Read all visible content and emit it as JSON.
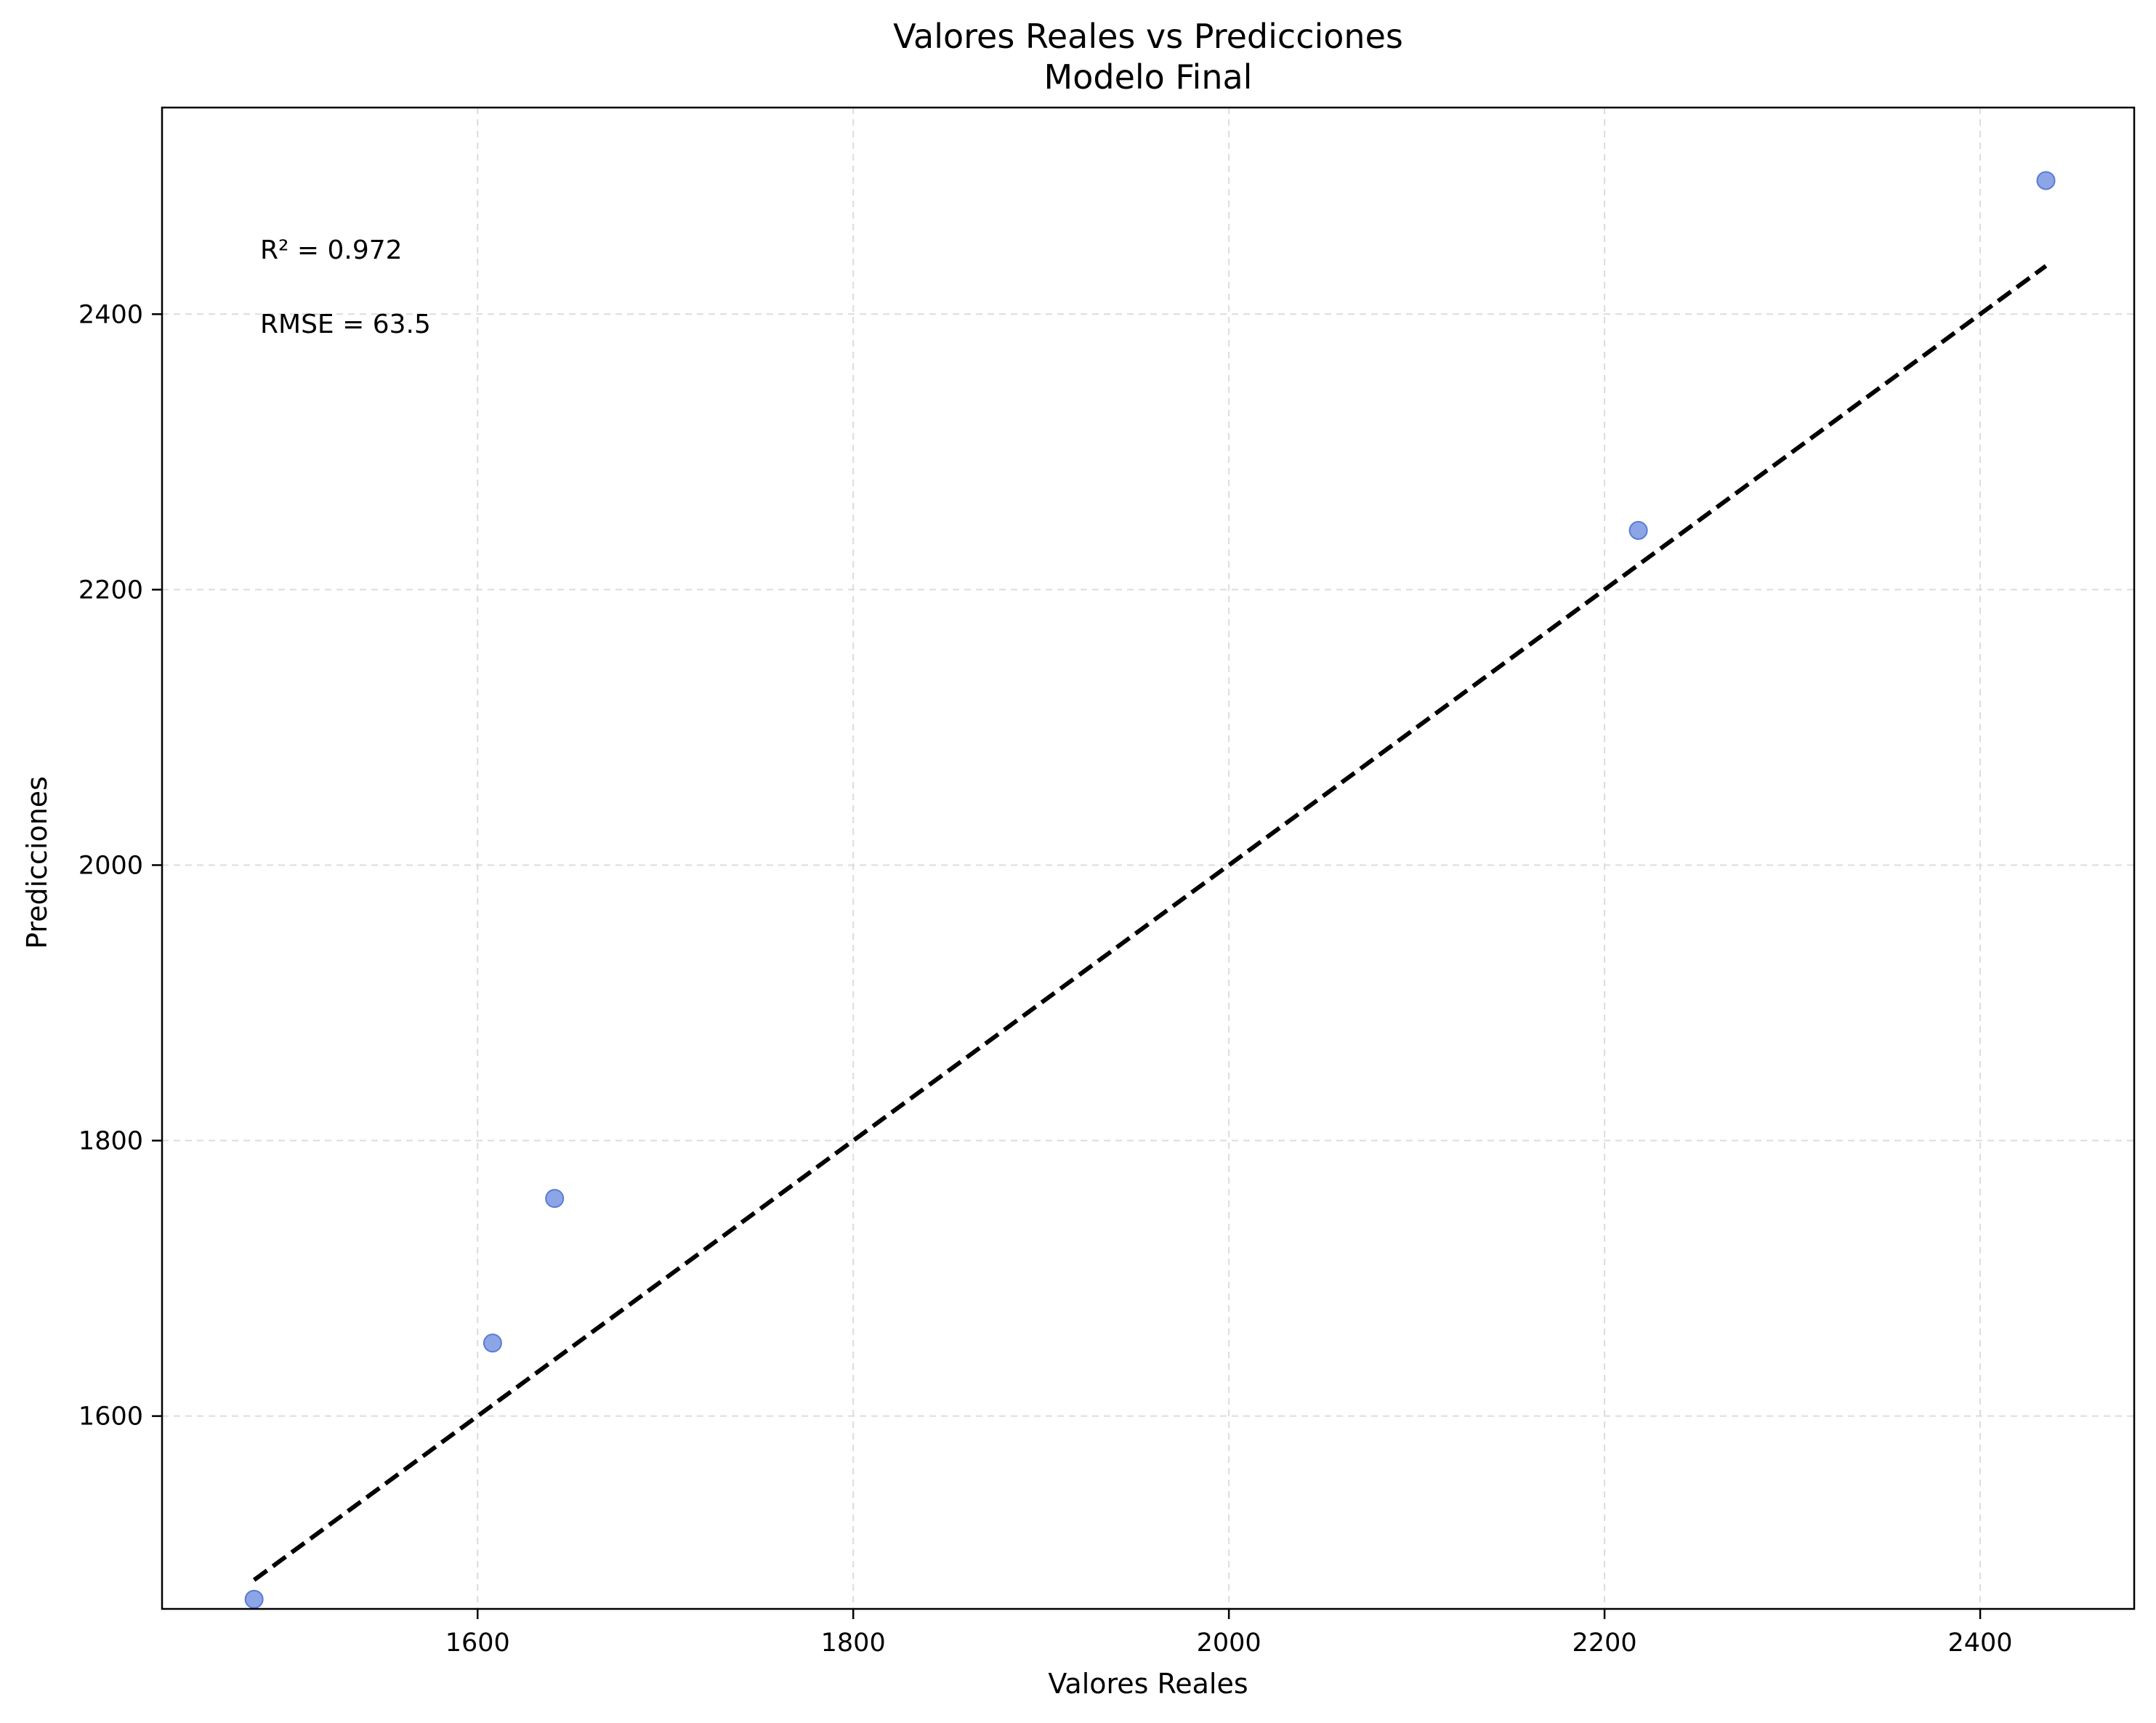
{
  "chart_data": {
    "type": "scatter",
    "title": "Valores Reales vs Predicciones",
    "subtitle": "Modelo Final",
    "xlabel": "Valores Reales",
    "ylabel": "Predicciones",
    "xlim": [
      1432,
      2482
    ],
    "ylim": [
      1460,
      2550
    ],
    "x_ticks": [
      1600,
      1800,
      2000,
      2200,
      2400
    ],
    "y_ticks": [
      1600,
      1800,
      2000,
      2200,
      2400
    ],
    "grid": true,
    "series": [
      {
        "type": "scatter",
        "color": "#6f8fe0",
        "points": [
          {
            "x": 1481,
            "y": 1467
          },
          {
            "x": 1608,
            "y": 1653
          },
          {
            "x": 1641,
            "y": 1758
          },
          {
            "x": 2218,
            "y": 2243
          },
          {
            "x": 2435,
            "y": 2497
          }
        ]
      },
      {
        "type": "line",
        "style": "dashed",
        "color": "#000000",
        "points": [
          {
            "x": 1481,
            "y": 1481
          },
          {
            "x": 2435,
            "y": 2435
          }
        ]
      }
    ],
    "annotations": [
      {
        "text": "R² = 0.972"
      },
      {
        "text": "RMSE = 63.5"
      }
    ]
  }
}
